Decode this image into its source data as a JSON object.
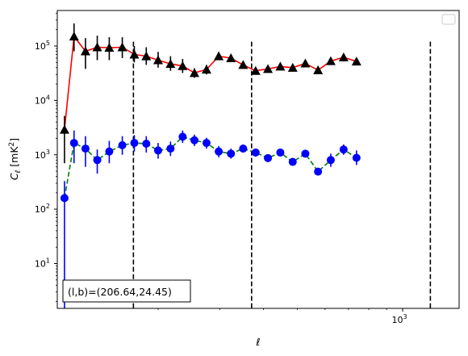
{
  "chart_data": {
    "type": "line",
    "xscale": "log",
    "yscale": "log",
    "xlabel": "ℓ",
    "ylabel": "C_ℓ [mK²]",
    "xlim": [
      103,
      1450
    ],
    "ylim": [
      1.5,
      450000
    ],
    "xticks": [
      {
        "value": 1000,
        "base": "10",
        "exp": "3"
      }
    ],
    "yticks": [
      {
        "value": 10,
        "base": "10",
        "exp": "1"
      },
      {
        "value": 100,
        "base": "10",
        "exp": "2"
      },
      {
        "value": 1000,
        "base": "10",
        "exp": "3"
      },
      {
        "value": 10000,
        "base": "10",
        "exp": "4"
      },
      {
        "value": 100000,
        "base": "10",
        "exp": "5"
      }
    ],
    "vlines": [
      170,
      370,
      1200
    ],
    "annotation": "(l,b)=(206.64,24.45)",
    "legend_position": "top-right",
    "series": [
      {
        "marker": "triangle",
        "line_color": "#ff0000",
        "line_style": "solid",
        "marker_color": "#000000",
        "points": [
          {
            "x": 108,
            "y": 2900,
            "lo": 700,
            "hi": 5200
          },
          {
            "x": 115,
            "y": 150000,
            "lo": 80000,
            "hi": 260000
          },
          {
            "x": 124,
            "y": 80000,
            "lo": 38000,
            "hi": 140000
          },
          {
            "x": 134,
            "y": 95000,
            "lo": 55000,
            "hi": 155000
          },
          {
            "x": 145,
            "y": 93000,
            "lo": 55000,
            "hi": 145000
          },
          {
            "x": 158,
            "y": 95000,
            "lo": 60000,
            "hi": 145000
          },
          {
            "x": 171,
            "y": 70000,
            "lo": 50000,
            "hi": 100000
          },
          {
            "x": 185,
            "y": 65000,
            "lo": 45000,
            "hi": 95000
          },
          {
            "x": 200,
            "y": 55000,
            "lo": 40000,
            "hi": 78000
          },
          {
            "x": 217,
            "y": 47000,
            "lo": 35000,
            "hi": 65000
          },
          {
            "x": 235,
            "y": 43000,
            "lo": 32000,
            "hi": 58000
          },
          {
            "x": 254,
            "y": 32000,
            "lo": 26000,
            "hi": 39000
          },
          {
            "x": 275,
            "y": 37000,
            "lo": 30000,
            "hi": 45000
          },
          {
            "x": 298,
            "y": 65000,
            "lo": 55000,
            "hi": 77000
          },
          {
            "x": 323,
            "y": 60000,
            "lo": 52000,
            "hi": 70000
          },
          {
            "x": 350,
            "y": 45000,
            "lo": 40000,
            "hi": 51000
          },
          {
            "x": 380,
            "y": 35000,
            "lo": 31000,
            "hi": 40000
          },
          {
            "x": 412,
            "y": 38000,
            "lo": 34000,
            "hi": 43000
          },
          {
            "x": 447,
            "y": 42000,
            "lo": 38000,
            "hi": 47000
          },
          {
            "x": 485,
            "y": 40000,
            "lo": 36000,
            "hi": 45000
          },
          {
            "x": 527,
            "y": 48000,
            "lo": 43000,
            "hi": 54000
          },
          {
            "x": 573,
            "y": 36000,
            "lo": 32000,
            "hi": 41000
          },
          {
            "x": 623,
            "y": 53000,
            "lo": 47000,
            "hi": 60000
          },
          {
            "x": 678,
            "y": 62000,
            "lo": 55000,
            "hi": 70000
          },
          {
            "x": 738,
            "y": 52000,
            "lo": 46000,
            "hi": 59000
          }
        ]
      },
      {
        "marker": "circle",
        "line_color": "#008000",
        "line_style": "dashed",
        "marker_color": "#0000ff",
        "points": [
          {
            "x": 108,
            "y": 160,
            "lo": 1.2,
            "hi": 330
          },
          {
            "x": 115,
            "y": 1650,
            "lo": 700,
            "hi": 2800
          },
          {
            "x": 124,
            "y": 1300,
            "lo": 600,
            "hi": 2200
          },
          {
            "x": 134,
            "y": 800,
            "lo": 450,
            "hi": 1250
          },
          {
            "x": 145,
            "y": 1150,
            "lo": 700,
            "hi": 1800
          },
          {
            "x": 158,
            "y": 1500,
            "lo": 1000,
            "hi": 2200
          },
          {
            "x": 171,
            "y": 1650,
            "lo": 1150,
            "hi": 2300
          },
          {
            "x": 185,
            "y": 1600,
            "lo": 1100,
            "hi": 2200
          },
          {
            "x": 200,
            "y": 1200,
            "lo": 850,
            "hi": 1650
          },
          {
            "x": 217,
            "y": 1300,
            "lo": 950,
            "hi": 1750
          },
          {
            "x": 235,
            "y": 2150,
            "lo": 1650,
            "hi": 2800
          },
          {
            "x": 254,
            "y": 1850,
            "lo": 1450,
            "hi": 2350
          },
          {
            "x": 275,
            "y": 1650,
            "lo": 1300,
            "hi": 2050
          },
          {
            "x": 298,
            "y": 1150,
            "lo": 900,
            "hi": 1450
          },
          {
            "x": 323,
            "y": 1050,
            "lo": 850,
            "hi": 1300
          },
          {
            "x": 350,
            "y": 1300,
            "lo": 1100,
            "hi": 1550
          },
          {
            "x": 380,
            "y": 1100,
            "lo": 930,
            "hi": 1300
          },
          {
            "x": 412,
            "y": 870,
            "lo": 750,
            "hi": 1000
          },
          {
            "x": 447,
            "y": 1100,
            "lo": 950,
            "hi": 1280
          },
          {
            "x": 485,
            "y": 740,
            "lo": 640,
            "hi": 860
          },
          {
            "x": 527,
            "y": 1050,
            "lo": 900,
            "hi": 1220
          },
          {
            "x": 573,
            "y": 490,
            "lo": 420,
            "hi": 570
          },
          {
            "x": 623,
            "y": 800,
            "lo": 600,
            "hi": 1050
          },
          {
            "x": 678,
            "y": 1250,
            "lo": 1000,
            "hi": 1550
          },
          {
            "x": 738,
            "y": 880,
            "lo": 650,
            "hi": 1200
          }
        ]
      }
    ]
  }
}
